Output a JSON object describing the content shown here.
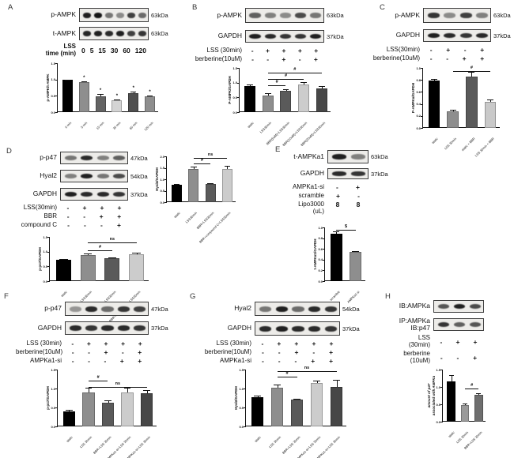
{
  "panels": {
    "A": {
      "letter": "A",
      "blots": [
        {
          "label": "p-AMPK",
          "kda": "63kDa",
          "bands": [
            0.95,
            1,
            0.55,
            0.45,
            0.8,
            0.6
          ]
        },
        {
          "label": "t-AMPK",
          "kda": "63kDa",
          "bands": [
            0.92,
            0.95,
            0.9,
            0.95,
            0.8,
            0.85
          ]
        }
      ],
      "conditions": [
        {
          "label": [
            "LSS",
            "time (min)"
          ],
          "values": [
            "0",
            "5",
            "15",
            "30",
            "60",
            "120"
          ],
          "bold": true
        }
      ]
    },
    "B": {
      "letter": "B",
      "blots": [
        {
          "label": "p-AMPK",
          "kda": "63kDa",
          "bands": [
            0.65,
            0.5,
            0.45,
            0.75,
            0.55
          ]
        },
        {
          "label": "GAPDH",
          "kda": "37kDa",
          "bands": [
            0.95,
            0.9,
            0.85,
            0.85,
            0.95
          ]
        }
      ],
      "conditions": [
        {
          "label": [
            "LSS (30min)"
          ],
          "values": [
            "-",
            "+",
            "+",
            "+",
            "+"
          ]
        },
        {
          "label": [
            "berberine(10uM)"
          ],
          "values": [
            "-",
            "-",
            "+",
            "-",
            "+"
          ]
        }
      ]
    },
    "C": {
      "letter": "C",
      "blots": [
        {
          "label": "p-AMPK",
          "kda": "63kDa",
          "bands": [
            0.85,
            0.45,
            0.8,
            0.5
          ]
        },
        {
          "label": "GAPDH",
          "kda": "37kDa",
          "bands": [
            0.95,
            0.9,
            0.85,
            0.9
          ]
        }
      ],
      "conditions": [
        {
          "label": [
            "LSS(30min)"
          ],
          "values": [
            "-",
            "+",
            "-",
            "+"
          ]
        },
        {
          "label": [
            "berberine(10uM)"
          ],
          "values": [
            "-",
            "-",
            "+",
            "+"
          ]
        }
      ]
    },
    "D": {
      "letter": "D",
      "blots": [
        {
          "label": "p-p47",
          "kda": "47kDa",
          "bands": [
            0.55,
            0.9,
            0.5,
            0.65
          ]
        },
        {
          "label": "Hyal2",
          "kda": "54kDa",
          "bands": [
            0.5,
            0.95,
            0.55,
            0.75
          ]
        },
        {
          "label": "GAPDH",
          "kda": "37kDa",
          "bands": [
            0.95,
            0.9,
            0.9,
            0.85
          ]
        }
      ],
      "conditions": [
        {
          "label": [
            "LSS(30min)"
          ],
          "values": [
            "-",
            "+",
            "+",
            "+"
          ]
        },
        {
          "label": [
            "BBR"
          ],
          "values": [
            "-",
            "-",
            "+",
            "+"
          ]
        },
        {
          "label": [
            "compound C"
          ],
          "values": [
            "-",
            "-",
            "-",
            "+"
          ]
        }
      ]
    },
    "E": {
      "letter": "E",
      "blots": [
        {
          "label": "t-AMPKa1",
          "kda": "63kDa",
          "bands": [
            0.95,
            0.5
          ]
        },
        {
          "label": "GAPDH",
          "kda": "37kDa",
          "bands": [
            0.9,
            0.85
          ]
        }
      ],
      "conditions": [
        {
          "label": [
            "AMPKa1-si"
          ],
          "values": [
            "-",
            "+"
          ]
        },
        {
          "label": [
            "scramble"
          ],
          "values": [
            "+",
            "-"
          ]
        },
        {
          "label": [
            "Lipo3000"
          ],
          "values": [
            "8",
            "8"
          ]
        },
        {
          "label": [
            "(uL)"
          ],
          "values": []
        }
      ]
    },
    "F": {
      "letter": "F",
      "blots": [
        {
          "label": "p-p47",
          "kda": "47kDa",
          "bands": [
            0.4,
            0.9,
            0.6,
            0.85,
            0.8
          ]
        },
        {
          "label": "GAPDH",
          "kda": "37kDa",
          "bands": [
            0.9,
            0.85,
            0.9,
            0.9,
            0.85
          ]
        }
      ],
      "conditions": [
        {
          "label": [
            "LSS (30min)"
          ],
          "values": [
            "-",
            "+",
            "+",
            "+",
            "+"
          ]
        },
        {
          "label": [
            "berberine(10uM)"
          ],
          "values": [
            "-",
            "-",
            "+",
            "-",
            "+"
          ]
        },
        {
          "label": [
            "AMPKa1-si"
          ],
          "values": [
            "-",
            "-",
            "-",
            "+",
            "+"
          ]
        }
      ]
    },
    "G": {
      "letter": "G",
      "blots": [
        {
          "label": "Hyal2",
          "kda": "54kDa",
          "bands": [
            0.55,
            0.95,
            0.6,
            0.9,
            0.85
          ]
        },
        {
          "label": "GAPDH",
          "kda": "37kDa",
          "bands": [
            0.9,
            0.95,
            0.9,
            0.9,
            0.85
          ]
        }
      ],
      "conditions": [
        {
          "label": [
            "LSS (30min)"
          ],
          "values": [
            "-",
            "+",
            "+",
            "+",
            "+"
          ]
        },
        {
          "label": [
            "berberine(10uM)"
          ],
          "values": [
            "-",
            "-",
            "+",
            "-",
            "+"
          ]
        },
        {
          "label": [
            "AMPKa1-si"
          ],
          "values": [
            "-",
            "-",
            "-",
            "+",
            "+"
          ]
        }
      ]
    },
    "H": {
      "letter": "H",
      "blots": [
        {
          "label": "IB:AMPKa",
          "kda": "",
          "bands": [
            0.7,
            0.95,
            0.75
          ]
        },
        {
          "label": [
            "IP:AMPKa",
            "IB:p47"
          ],
          "kda": "",
          "bands": [
            0.85,
            0.65,
            0.7
          ]
        }
      ],
      "conditions": [
        {
          "label": [
            "LSS",
            "(30min)"
          ],
          "values": [
            "-",
            "+",
            "+"
          ]
        },
        {
          "label": [
            "berberine",
            "(10uM)"
          ],
          "values": [
            "-",
            "-",
            "+"
          ]
        }
      ]
    }
  },
  "chart_data": {
    "A": {
      "type": "bar",
      "ylabel": "p-AMPK/t-AMPK",
      "ylim": [
        0,
        1.5
      ],
      "yticks": [
        "0.0",
        "0.5",
        "1.0",
        "1.5"
      ],
      "categories": [
        "0 min",
        "5 min",
        "15 min",
        "30 min",
        "60 min",
        "120 min"
      ],
      "values": [
        0.98,
        0.92,
        0.48,
        0.36,
        0.58,
        0.48
      ],
      "errors": [
        0.02,
        0.03,
        0.07,
        0.03,
        0.04,
        0.03
      ],
      "colors": [
        "#000000",
        "#8e8e8e",
        "#636363",
        "#d4d4d4",
        "#4f4f4f",
        "#8e8e8e"
      ],
      "stars": [
        1,
        2,
        3,
        4,
        5
      ]
    },
    "B": {
      "type": "bar",
      "ylabel": "P-AMPK/GAPDH",
      "ylim": [
        0,
        1.5
      ],
      "yticks": [
        "0.0",
        "0.5",
        "1.0",
        "1.5"
      ],
      "categories": [
        "static",
        "LSS30min",
        "BBR(5uM)+LSS30min",
        "BBR(10uM)+LSS30min",
        "BBR(20uM)+LSS30min"
      ],
      "values": [
        0.88,
        0.55,
        0.72,
        0.93,
        0.8
      ],
      "errors": [
        0.07,
        0.08,
        0.05,
        0.08,
        0.08
      ],
      "colors": [
        "#000000",
        "#8e8e8e",
        "#5a5a5a",
        "#cccccc",
        "#474747"
      ],
      "sig": [
        {
          "from": 1,
          "to": 2,
          "y": 0.92,
          "label": "#"
        },
        {
          "from": 1,
          "to": 3,
          "y": 1.13,
          "label": "#"
        },
        {
          "from": 1,
          "to": 4,
          "y": 1.35,
          "label": "#"
        }
      ]
    },
    "C": {
      "type": "bar",
      "ylabel": "P-AMPKα/GAPDH",
      "ylim": [
        0,
        1.0
      ],
      "yticks": [
        "0.0",
        "0.2",
        "0.4",
        "0.6",
        "0.8",
        "1.0"
      ],
      "categories": [
        "static",
        "LSS 30min",
        "static + BBR",
        "LSS 30min + BBR"
      ],
      "values": [
        0.79,
        0.28,
        0.85,
        0.44
      ],
      "errors": [
        0.03,
        0.02,
        0.08,
        0.03
      ],
      "colors": [
        "#000000",
        "#8e8e8e",
        "#5a5a5a",
        "#c9c9c9"
      ],
      "sig": [
        {
          "from": 1,
          "to": 3,
          "y": 0.95,
          "label": "#"
        }
      ]
    },
    "D_hyal2": {
      "type": "bar",
      "ylabel": "Hyal2/GAPDH",
      "ylim": [
        0,
        2.0
      ],
      "yticks": [
        "0.0",
        "0.5",
        "1.0",
        "1.5",
        "2.0"
      ],
      "categories": [
        "static",
        "LSS30min",
        "BBR+LSS30min",
        "BBR+compound C+LSS30min"
      ],
      "values": [
        0.75,
        1.45,
        0.78,
        1.45
      ],
      "errors": [
        0.05,
        0.1,
        0.04,
        0.12
      ],
      "colors": [
        "#000000",
        "#8e8e8e",
        "#5a5a5a",
        "#cccccc"
      ],
      "sig": [
        {
          "from": 1,
          "to": 2,
          "y": 1.7,
          "label": "#"
        },
        {
          "from": 1,
          "to": 3,
          "y": 1.93,
          "label": "ns"
        }
      ]
    },
    "D_pp47": {
      "type": "bar",
      "ylabel": "p-p47/GAPDH",
      "ylim": [
        0,
        1.5
      ],
      "yticks": [
        "0.0",
        "0.5",
        "1.0",
        "1.5"
      ],
      "categories": [
        "static",
        "LSS30min",
        "BBR+LSS30min",
        "BBR+compound C+LSS30min"
      ],
      "values": [
        0.72,
        0.88,
        0.78,
        0.92
      ],
      "errors": [
        0.03,
        0.05,
        0.03,
        0.04
      ],
      "colors": [
        "#000000",
        "#8e8e8e",
        "#5a5a5a",
        "#cccccc"
      ],
      "sig": [
        {
          "from": 1,
          "to": 2,
          "y": 1.05,
          "label": "#"
        },
        {
          "from": 1,
          "to": 3,
          "y": 1.3,
          "label": "ns"
        }
      ]
    },
    "E": {
      "type": "bar",
      "ylabel": "t-AMPKα1/GAPDH",
      "ylim": [
        0,
        1.0
      ],
      "yticks": [
        "0.0",
        "0.2",
        "0.4",
        "0.6",
        "0.8",
        "1.0"
      ],
      "categories": [
        "scramble",
        "AMPKa1-si"
      ],
      "values": [
        0.88,
        0.54
      ],
      "errors": [
        0.04,
        0.02
      ],
      "colors": [
        "#000000",
        "#8e8e8e"
      ],
      "sig": [
        {
          "from": 0,
          "to": 1,
          "y": 0.96,
          "label": "$"
        }
      ]
    },
    "F": {
      "type": "bar",
      "ylabel": "p-p47/GAPDH",
      "ylim": [
        0,
        1.5
      ],
      "yticks": [
        "0.0",
        "0.5",
        "1.0",
        "1.5"
      ],
      "categories": [
        "static",
        "LSS 30min",
        "BBR+LSS 30min",
        "AMPKa1-si+LSS 30min",
        "BBR+AMPKa1-si+LSS 30min"
      ],
      "values": [
        0.4,
        0.9,
        0.62,
        0.89,
        0.87
      ],
      "errors": [
        0.03,
        0.13,
        0.07,
        0.13,
        0.08
      ],
      "colors": [
        "#000000",
        "#8e8e8e",
        "#5a5a5a",
        "#cccccc",
        "#474747"
      ],
      "sig": [
        {
          "from": 1,
          "to": 2,
          "y": 1.2,
          "label": "#"
        },
        {
          "from": 1,
          "to": 4,
          "y": 1.04,
          "label": "ns"
        }
      ]
    },
    "G": {
      "type": "bar",
      "ylabel": "Hyal2/GAPDH",
      "ylim": [
        0,
        1.5
      ],
      "yticks": [
        "0.0",
        "0.5",
        "1.0",
        "1.5"
      ],
      "categories": [
        "static",
        "LSS 30min",
        "BBR+LSS 30min",
        "AMPKa1-si+LSS 30min",
        "BBR+AMPKa1-si+LSS 30min"
      ],
      "values": [
        0.78,
        1.02,
        0.7,
        1.15,
        1.05
      ],
      "errors": [
        0.04,
        0.08,
        0.02,
        0.06,
        0.18
      ],
      "colors": [
        "#000000",
        "#8e8e8e",
        "#5a5a5a",
        "#cccccc",
        "#474747"
      ],
      "sig": [
        {
          "from": 1,
          "to": 2,
          "y": 1.32,
          "label": "#"
        },
        {
          "from": 1,
          "to": 4,
          "y": 1.45,
          "label": "ns"
        }
      ]
    },
    "H": {
      "type": "bar",
      "ylabel": [
        "amount of p47",
        "associated with AMPKa"
      ],
      "ylabel_italic": true,
      "ylim": [
        0,
        1.5
      ],
      "yticks": [
        "0.0",
        "0.5",
        "1.0",
        "1.5"
      ],
      "categories": [
        "static",
        "LSS 30min",
        "BBR+LSS 30min"
      ],
      "values": [
        1.15,
        0.47,
        0.77
      ],
      "errors": [
        0.18,
        0.06,
        0.05
      ],
      "colors": [
        "#000000",
        "#9a9a9a",
        "#6e6e6e"
      ],
      "sig": [
        {
          "from": 1,
          "to": 2,
          "y": 0.95,
          "label": "#"
        }
      ]
    }
  }
}
